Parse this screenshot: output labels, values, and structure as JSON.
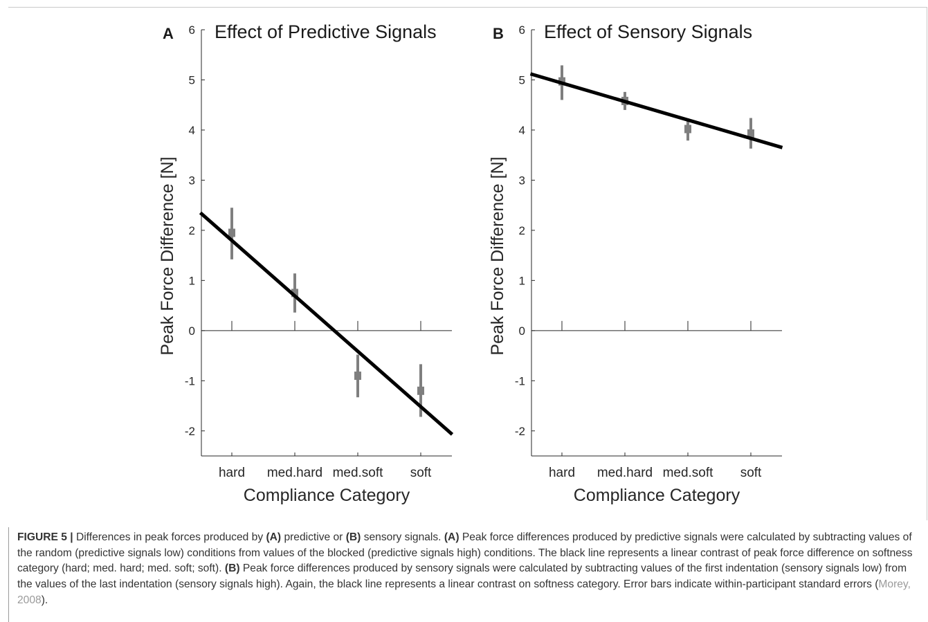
{
  "figure": {
    "caption": {
      "label": "FIGURE 5 |",
      "t1": " Differences in peak forces produced by ",
      "a1": "(A)",
      "t2": " predictive or ",
      "b1": "(B)",
      "t3": " sensory signals. ",
      "a2": "(A)",
      "t4": " Peak force differences produced by predictive signals were calculated by subtracting values of the random (predictive signals low) conditions from values of the blocked (predictive signals high) conditions. The black line represents a linear contrast of peak force difference on softness category (hard; med. hard; med. soft; soft). ",
      "b2": "(B)",
      "t5": " Peak force differences produced by sensory signals were calculated by subtracting values of the first indentation (sensory signals low) from the values of the last indentation (sensory signals high). Again, the black line represents a linear contrast on softness category. Error bars indicate within-participant standard errors (",
      "cite": "Morey, 2008",
      "t6": ")."
    }
  },
  "chart_data": [
    {
      "type": "scatter",
      "panel_label": "A",
      "title": "Effect of Predictive Signals",
      "xlabel": "Compliance Category",
      "ylabel": "Peak Force Difference [N]",
      "categories": [
        "hard",
        "med.hard",
        "med.soft",
        "soft"
      ],
      "yticks": [
        "-2",
        "-1",
        "0",
        "1",
        "2",
        "3",
        "4",
        "5",
        "6"
      ],
      "ylim": [
        -2.5,
        6
      ],
      "points": [
        1.95,
        0.75,
        -0.9,
        -1.2
      ],
      "error_low": [
        1.42,
        0.36,
        -1.33,
        -1.72
      ],
      "error_high": [
        2.45,
        1.14,
        -0.48,
        -0.67
      ],
      "fit_line": {
        "x_start": 0.5,
        "y_start": 2.35,
        "x_end": 4.5,
        "y_end": -2.07
      },
      "zero_line": true,
      "point_color": "#7f7f7f",
      "line_color": "#000000"
    },
    {
      "type": "scatter",
      "panel_label": "B",
      "title": "Effect of Sensory Signals",
      "xlabel": "Compliance Category",
      "ylabel": "Peak Force Difference [N]",
      "categories": [
        "hard",
        "med.hard",
        "med.soft",
        "soft"
      ],
      "yticks": [
        "-2",
        "-1",
        "0",
        "1",
        "2",
        "3",
        "4",
        "5",
        "6"
      ],
      "ylim": [
        -2.5,
        6
      ],
      "points": [
        4.97,
        4.58,
        4.02,
        3.93
      ],
      "error_low": [
        4.6,
        4.4,
        3.79,
        3.63
      ],
      "error_high": [
        5.29,
        4.76,
        4.23,
        4.24
      ],
      "fit_line": {
        "x_start": 0.5,
        "y_start": 5.12,
        "x_end": 4.5,
        "y_end": 3.65
      },
      "zero_line": true,
      "point_color": "#7f7f7f",
      "line_color": "#000000"
    }
  ]
}
